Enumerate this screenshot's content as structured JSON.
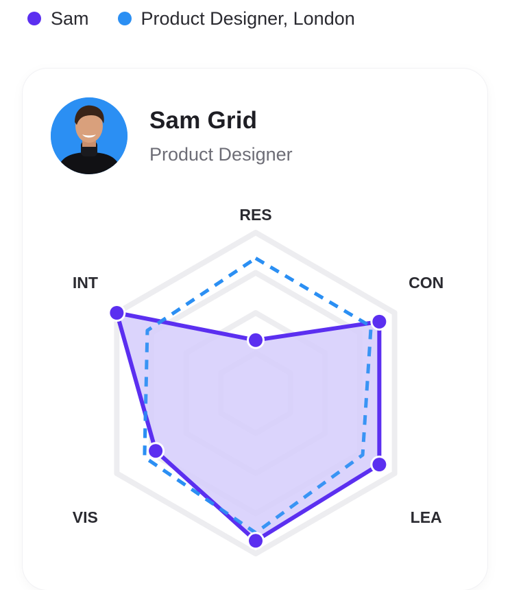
{
  "legend": [
    {
      "label": "Sam",
      "color": "#5b2ff0"
    },
    {
      "label": "Product Designer, London",
      "color": "#2b8ff3"
    }
  ],
  "profile": {
    "name": "Sam Grid",
    "role": "Product Designer",
    "avatar_icon": "person-avatar"
  },
  "colors": {
    "sam_stroke": "#5b2ff0",
    "sam_fill": "#d5cdfb",
    "benchmark_stroke": "#2b8ff3",
    "grid": "#ededf0"
  },
  "chart_data": {
    "type": "radar",
    "axes": [
      "RES",
      "CON",
      "LEA",
      "",
      "VIS",
      "INT"
    ],
    "scale": [
      0,
      100
    ],
    "grid_levels": 4,
    "series": [
      {
        "name": "Sam",
        "values": [
          33,
          89,
          89,
          92,
          72,
          100
        ]
      },
      {
        "name": "Product Designer, London",
        "values": [
          84,
          83,
          77,
          87,
          80,
          78
        ]
      }
    ]
  }
}
